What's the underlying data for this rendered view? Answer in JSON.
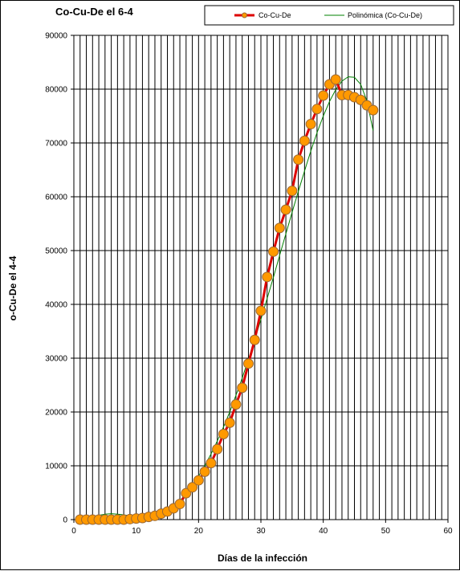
{
  "chart_data": {
    "type": "line",
    "title": "Co-Cu-De  el  6-4",
    "xlabel": "Días de la infección",
    "ylabel": "o-Cu-De el 4-4",
    "xlim": [
      0,
      60
    ],
    "ylim": [
      0,
      90000
    ],
    "x_ticks": [
      0,
      10,
      20,
      30,
      40,
      50,
      60
    ],
    "y_ticks": [
      0,
      10000,
      20000,
      30000,
      40000,
      50000,
      60000,
      70000,
      80000,
      90000
    ],
    "grid": "vertical lines every 1 unit on x, horizontal lines every 10000 on y",
    "legend_position": "top-right",
    "series": [
      {
        "name": "Co-Cu-De",
        "style": "line-with-markers",
        "line_color": "#dd0000",
        "marker_color": "#ff9900",
        "marker_edge": "#996633",
        "x": [
          1,
          2,
          3,
          4,
          5,
          6,
          7,
          8,
          9,
          10,
          11,
          12,
          13,
          14,
          15,
          16,
          17,
          18,
          19,
          20,
          21,
          22,
          23,
          24,
          25,
          26,
          27,
          28,
          29,
          30,
          31,
          32,
          33,
          34,
          35,
          36,
          37,
          38,
          39,
          40,
          41,
          42,
          43,
          44,
          45,
          46,
          47,
          48
        ],
        "y": [
          0,
          0,
          0,
          0,
          0,
          0,
          0,
          0,
          100,
          200,
          300,
          500,
          700,
          1100,
          1500,
          2100,
          2900,
          4900,
          6000,
          7300,
          8900,
          10500,
          13100,
          15900,
          18000,
          21400,
          24500,
          29000,
          33400,
          38800,
          45100,
          49800,
          54200,
          57600,
          61100,
          66900,
          70400,
          73500,
          76300,
          78800,
          80900,
          81800,
          78900,
          78900,
          78500,
          78000,
          77000,
          76100
        ]
      },
      {
        "name": "Polinómica (Co-Cu-De)",
        "style": "trendline",
        "line_color": "#008000",
        "x": [
          1,
          2,
          3,
          4,
          5,
          6,
          7,
          8,
          9,
          10,
          11,
          12,
          13,
          14,
          15,
          16,
          17,
          18,
          19,
          20,
          21,
          22,
          23,
          24,
          25,
          26,
          27,
          28,
          29,
          30,
          31,
          32,
          33,
          34,
          35,
          36,
          37,
          38,
          39,
          40,
          41,
          42,
          43,
          44,
          45,
          46,
          47,
          48
        ],
        "y": [
          -200,
          200,
          500,
          800,
          1000,
          1100,
          1000,
          900,
          700,
          600,
          500,
          500,
          700,
          1000,
          1600,
          2400,
          3500,
          4800,
          6300,
          8100,
          10000,
          12200,
          14600,
          17200,
          20000,
          23100,
          26300,
          29800,
          33400,
          37200,
          41100,
          45000,
          49100,
          53100,
          57100,
          61000,
          64800,
          68500,
          71900,
          75000,
          77700,
          79900,
          81500,
          82300,
          82200,
          80900,
          77800,
          72300
        ]
      }
    ]
  }
}
